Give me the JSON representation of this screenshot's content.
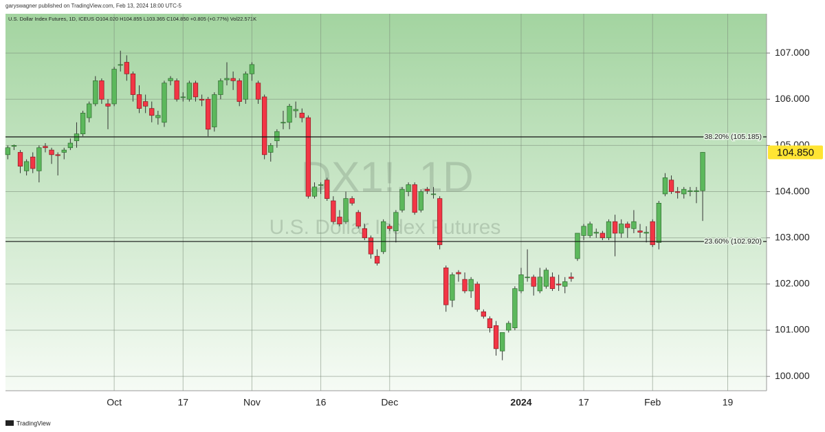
{
  "header": {
    "publisher": "garyswagner published on TradingView.com, Feb 13, 2024 18:00 UTC-5"
  },
  "footer": {
    "brand": "TradingView"
  },
  "chart_data": {
    "type": "candlestick",
    "legend": "U.S. Dollar Index Futures, 1D, ICEUS  O104.020 H104.855 L103.365 C104.850 +0.805 (+0.77%) Vol22.571K",
    "watermark": "DX1!, 1D",
    "watermark_subtitle": "U.S. Dollar Index Futures",
    "up_color": "#5cb85c",
    "down_color": "#f23645",
    "grid": true,
    "ylim": [
      99.69,
      107.85
    ],
    "yticks": [
      {
        "value": 100,
        "label": "100.000"
      },
      {
        "value": 101,
        "label": "101.000"
      },
      {
        "value": 102,
        "label": "102.000"
      },
      {
        "value": 103,
        "label": "103.000"
      },
      {
        "value": 104,
        "label": "104.000"
      },
      {
        "value": 105,
        "label": "105.000"
      },
      {
        "value": 106,
        "label": "106.000"
      },
      {
        "value": 107,
        "label": "107.000"
      }
    ],
    "hlines": [
      {
        "value": 105.185,
        "label": "38.20% (105.185)"
      },
      {
        "value": 102.92,
        "label": "23.60% (102.920)"
      }
    ],
    "last_price": {
      "value": 104.85,
      "label": "104.850"
    },
    "categories": [
      null,
      null,
      null,
      null,
      null,
      null,
      null,
      null,
      null,
      null,
      null,
      null,
      null,
      null,
      null,
      null,
      null,
      "Oct",
      null,
      null,
      null,
      null,
      null,
      null,
      null,
      null,
      null,
      null,
      "17",
      null,
      null,
      null,
      null,
      null,
      null,
      null,
      null,
      null,
      null,
      "Nov",
      null,
      null,
      null,
      null,
      null,
      null,
      null,
      null,
      null,
      null,
      "16",
      null,
      null,
      null,
      null,
      null,
      null,
      null,
      null,
      null,
      null,
      "Dec",
      null,
      null,
      null,
      null,
      null,
      null,
      null,
      null,
      null,
      null,
      null,
      null,
      null,
      null,
      null,
      null,
      null,
      null,
      null,
      null,
      "2024",
      null,
      null,
      null,
      null,
      null,
      null,
      null,
      null,
      null,
      "17",
      null,
      null,
      null,
      null,
      null,
      null,
      null,
      null,
      null,
      null,
      "Feb",
      null,
      null,
      null,
      null,
      null,
      null,
      null,
      null,
      null,
      null,
      null,
      "19"
    ],
    "open": [
      104.8,
      104.98,
      104.85,
      104.45,
      104.75,
      104.45,
      104.98,
      104.9,
      104.8,
      104.85,
      104.95,
      105.1,
      105.25,
      105.6,
      105.9,
      106.4,
      105.9,
      105.9,
      106.75,
      106.8,
      106.55,
      106.1,
      105.95,
      105.8,
      105.6,
      105.5,
      106.4,
      106.4,
      106.05,
      106.0,
      106.35,
      106.0,
      106.0,
      105.4,
      106.1,
      106.42,
      106.45,
      106.4,
      106.0,
      106.55,
      106.35,
      106.05,
      104.85,
      105.1,
      105.5,
      105.5,
      105.75,
      105.7,
      105.6,
      103.9,
      104.15,
      104.25,
      103.8,
      103.45,
      103.35,
      103.85,
      103.55,
      103.2,
      103.0,
      102.6,
      102.7,
      103.25,
      103.15,
      103.6,
      104.0,
      104.15,
      103.6,
      104.05,
      103.95,
      103.85,
      102.35,
      101.65,
      102.25,
      102.1,
      101.85,
      102.0,
      101.4,
      101.25,
      101.1,
      100.55,
      101.0,
      101.05,
      101.85,
      102.15,
      102.15,
      101.85,
      101.95,
      102.15,
      102.0,
      101.95,
      102.15,
      102.55,
      103.05,
      103.05,
      103.1,
      103.1,
      103.0,
      103.35,
      103.1,
      103.3,
      103.2,
      103.15,
      103.1,
      103.35,
      102.9,
      103.95,
      104.25,
      104.0,
      103.95,
      104.0,
      104.0,
      104.02,
      null,
      null,
      null,
      null
    ],
    "high": [
      105.0,
      105.02,
      104.9,
      104.7,
      104.85,
      105.0,
      105.05,
      104.95,
      104.85,
      104.95,
      105.15,
      105.5,
      105.75,
      105.95,
      106.5,
      106.45,
      106.0,
      106.7,
      107.05,
      106.95,
      106.6,
      106.3,
      106.1,
      105.95,
      105.75,
      106.4,
      106.5,
      106.45,
      106.15,
      106.4,
      106.4,
      106.1,
      106.05,
      106.15,
      106.45,
      106.8,
      106.6,
      106.45,
      106.6,
      106.8,
      106.4,
      106.1,
      105.05,
      105.35,
      105.75,
      105.9,
      105.95,
      105.8,
      105.65,
      104.2,
      104.2,
      104.3,
      103.9,
      103.6,
      104.0,
      103.9,
      103.6,
      103.3,
      103.05,
      102.75,
      103.4,
      103.3,
      103.6,
      104.1,
      104.2,
      104.2,
      104.05,
      104.1,
      104.1,
      103.9,
      102.4,
      102.25,
      102.3,
      102.25,
      102.15,
      102.05,
      101.45,
      101.3,
      101.2,
      100.95,
      101.2,
      101.95,
      102.35,
      102.75,
      102.2,
      102.35,
      102.35,
      102.25,
      102.2,
      102.15,
      102.25,
      103.1,
      103.3,
      103.35,
      103.2,
      103.15,
      103.4,
      103.5,
      103.4,
      103.35,
      103.6,
      103.3,
      103.25,
      103.4,
      103.8,
      104.4,
      104.35,
      104.1,
      104.1,
      104.1,
      104.1,
      104.855,
      null,
      null,
      null,
      null
    ],
    "low": [
      104.7,
      104.9,
      104.4,
      104.35,
      104.4,
      104.2,
      104.85,
      104.6,
      104.35,
      104.7,
      104.9,
      104.95,
      105.2,
      105.5,
      105.85,
      105.9,
      105.35,
      105.85,
      106.6,
      106.4,
      105.95,
      105.7,
      105.7,
      105.5,
      105.45,
      105.4,
      106.3,
      105.95,
      105.95,
      105.95,
      105.95,
      105.85,
      105.2,
      105.3,
      106.0,
      106.3,
      106.2,
      105.85,
      105.9,
      106.4,
      105.9,
      104.7,
      104.65,
      104.95,
      105.35,
      105.35,
      105.6,
      105.5,
      103.85,
      103.85,
      103.95,
      103.8,
      103.3,
      103.25,
      103.3,
      103.7,
      103.2,
      102.95,
      102.55,
      102.4,
      102.65,
      103.15,
      102.9,
      103.55,
      103.9,
      103.5,
      103.55,
      103.95,
      103.85,
      102.75,
      101.4,
      101.5,
      102.05,
      101.8,
      101.7,
      101.4,
      101.25,
      100.95,
      100.45,
      100.35,
      100.95,
      101.0,
      101.8,
      102.05,
      101.75,
      101.8,
      101.9,
      101.85,
      101.85,
      101.8,
      102.05,
      102.5,
      102.95,
      103.0,
      103.0,
      102.95,
      102.95,
      102.6,
      103.0,
      103.0,
      103.1,
      103.0,
      102.9,
      102.8,
      102.75,
      103.9,
      103.95,
      103.85,
      103.85,
      103.9,
      103.75,
      103.365,
      null,
      null,
      null,
      null
    ],
    "close": [
      104.95,
      105.0,
      104.55,
      104.65,
      104.5,
      104.95,
      104.95,
      104.8,
      104.78,
      104.9,
      105.05,
      105.25,
      105.7,
      105.9,
      106.4,
      106.0,
      105.85,
      106.65,
      106.75,
      106.55,
      106.1,
      105.8,
      105.85,
      105.65,
      105.65,
      106.35,
      106.45,
      106.0,
      106.05,
      106.35,
      106.05,
      105.98,
      105.35,
      106.1,
      106.4,
      106.45,
      106.4,
      105.95,
      106.55,
      106.75,
      106.0,
      104.8,
      105.0,
      105.3,
      105.5,
      105.85,
      105.78,
      105.6,
      103.9,
      104.1,
      104.15,
      103.85,
      103.35,
      103.3,
      103.85,
      103.75,
      103.25,
      103.0,
      102.65,
      102.45,
      103.35,
      103.2,
      103.55,
      104.05,
      104.15,
      103.55,
      104.0,
      104.02,
      103.95,
      102.85,
      101.55,
      102.2,
      102.22,
      101.85,
      102.1,
      101.45,
      101.3,
      101.05,
      100.6,
      100.95,
      101.15,
      101.9,
      102.2,
      102.15,
      101.95,
      102.15,
      102.3,
      101.9,
      101.98,
      102.05,
      102.12,
      103.1,
      103.25,
      103.3,
      103.12,
      103.0,
      103.35,
      103.1,
      103.3,
      103.22,
      103.35,
      103.12,
      103.12,
      102.85,
      103.75,
      104.3,
      104.0,
      103.98,
      104.05,
      104.02,
      104.02,
      104.85,
      null,
      null,
      null,
      null
    ]
  }
}
